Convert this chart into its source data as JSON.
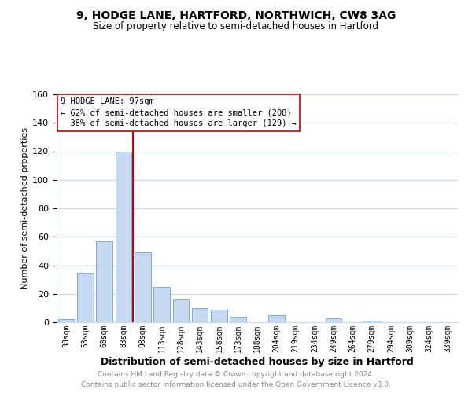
{
  "title": "9, HODGE LANE, HARTFORD, NORTHWICH, CW8 3AG",
  "subtitle": "Size of property relative to semi-detached houses in Hartford",
  "xlabel": "Distribution of semi-detached houses by size in Hartford",
  "ylabel": "Number of semi-detached properties",
  "footnote1": "Contains HM Land Registry data © Crown copyright and database right 2024.",
  "footnote2": "Contains public sector information licensed under the Open Government Licence v3.0.",
  "bar_labels": [
    "38sqm",
    "53sqm",
    "68sqm",
    "83sqm",
    "98sqm",
    "113sqm",
    "128sqm",
    "143sqm",
    "158sqm",
    "173sqm",
    "188sqm",
    "204sqm",
    "219sqm",
    "234sqm",
    "249sqm",
    "264sqm",
    "279sqm",
    "294sqm",
    "309sqm",
    "324sqm",
    "339sqm"
  ],
  "bar_values": [
    2,
    35,
    57,
    120,
    49,
    25,
    16,
    10,
    9,
    4,
    0,
    5,
    0,
    0,
    3,
    0,
    1,
    0,
    0,
    0,
    0
  ],
  "bar_color": "#c6d9f1",
  "bar_edge_color": "#7bafd4",
  "property_label": "9 HODGE LANE: 97sqm",
  "pct_smaller": 62,
  "count_smaller": 208,
  "pct_larger": 38,
  "count_larger": 129,
  "vline_color": "#cc0000",
  "ylim": [
    0,
    160
  ],
  "background_color": "#ffffff",
  "grid_color": "#c8d8ea",
  "annotation_box_edge": "#cc0000",
  "title_fontsize": 10,
  "subtitle_fontsize": 8.5,
  "xlabel_fontsize": 9,
  "ylabel_fontsize": 8,
  "footnote_fontsize": 6.5,
  "footnote_color": "#888888"
}
